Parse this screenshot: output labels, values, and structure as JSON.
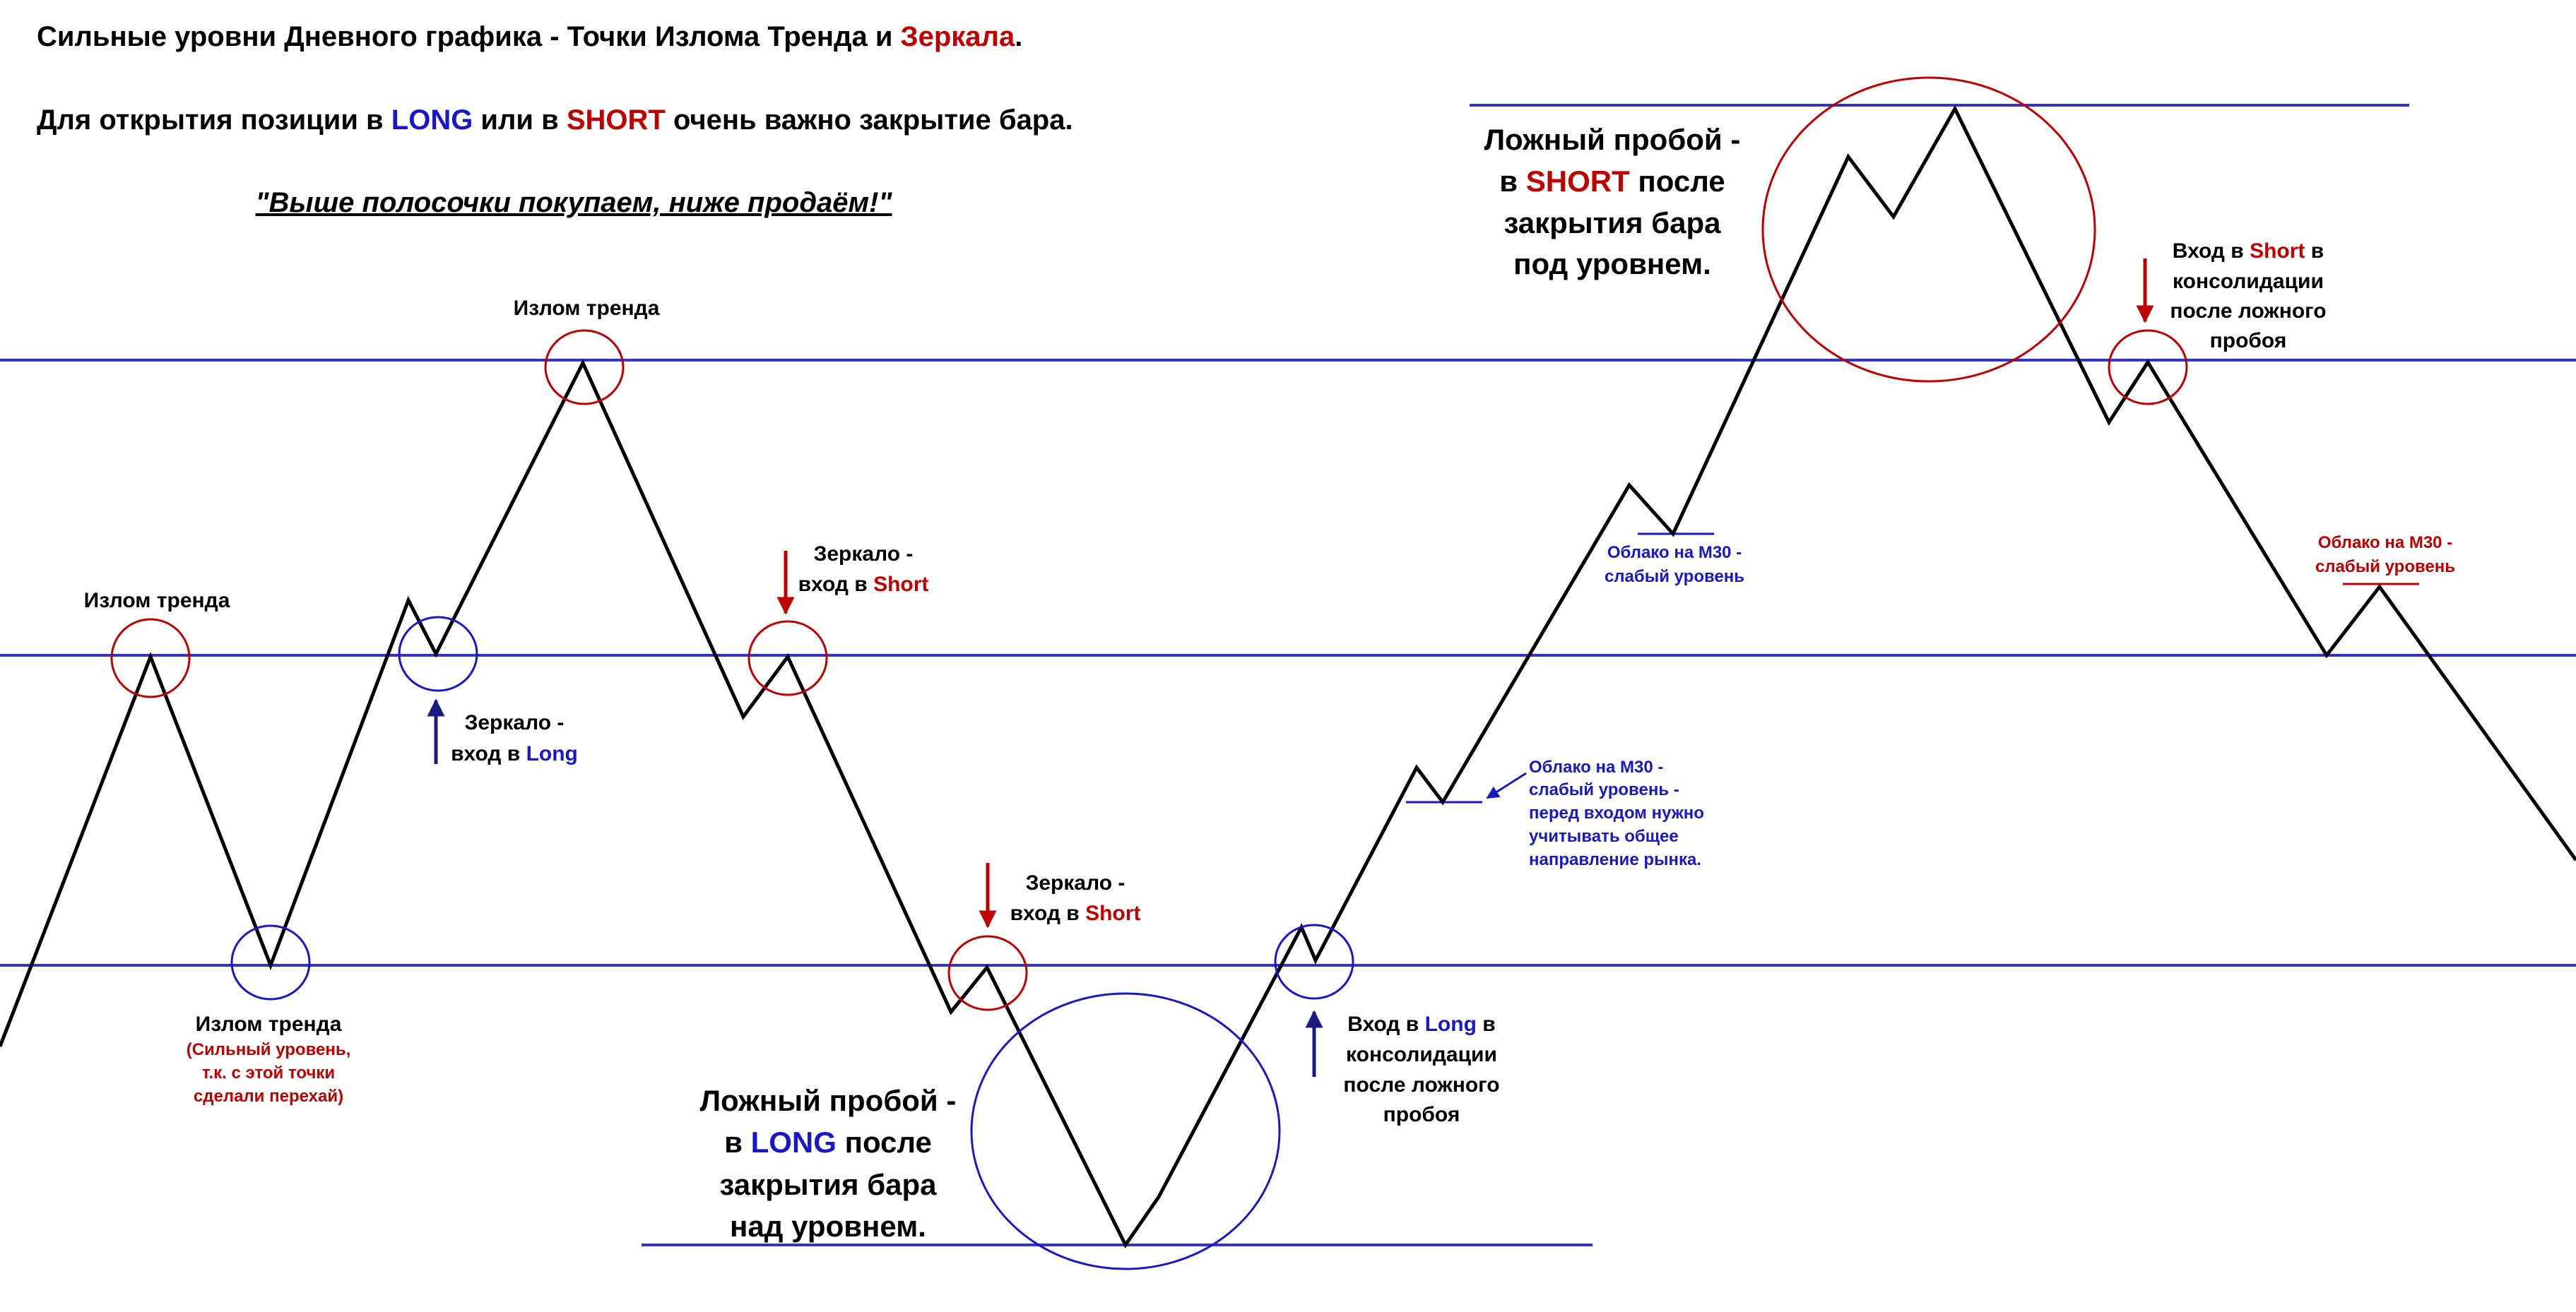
{
  "colors": {
    "level": "#3333cc",
    "red": "#c00000",
    "blue": "#1818c8",
    "line": "#000000",
    "arrow_blue": "#1a1a80"
  },
  "header": {
    "line1": {
      "pre": "Сильные уровни Дневного графика - Точки Излома Тренда и ",
      "accent": "Зеркала",
      "post": "."
    },
    "line2": {
      "pre": "Для открытия позиции в ",
      "long": "LONG",
      "mid": " или в ",
      "short": "SHORT",
      "post": " очень важно закрытие бара."
    },
    "slogan": "\"Выше полосочки покупаем, ниже продаём!\""
  },
  "labels": {
    "trend_break": "Излом тренда",
    "strong_level": [
      "(Сильный уровень,",
      "т.к. с этой точки",
      "сделали перехай)"
    ],
    "mirror": "Зеркало -",
    "entry_in": "вход в ",
    "long_word": "Long",
    "short_word": "Short",
    "entry_word": "Вход в ",
    "in_word": " в",
    "consolidation": "консолидации",
    "after_false": "после ложного",
    "breakout": "пробоя",
    "false_long": {
      "line1": "Ложный пробой -",
      "pre": "в ",
      "word": "LONG",
      "post": " после",
      "line3": "закрытия бара",
      "line4": "над уровнем."
    },
    "false_short": {
      "line1": "Ложный пробой -",
      "pre": "в ",
      "word": "SHORT",
      "post": " после",
      "line3": "закрытия бара",
      "line4": "под уровнем."
    },
    "cloud_weak": [
      "Облако на М30 -",
      "слабый уровень"
    ],
    "cloud_long": [
      "Облако на М30 -",
      "слабый уровень -",
      "перед входом нужно",
      "учитывать общее",
      "направление рынка."
    ]
  }
}
